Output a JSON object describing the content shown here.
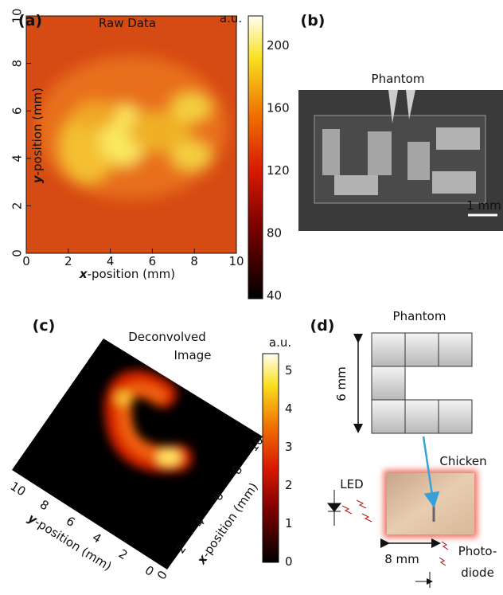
{
  "panels": {
    "a": {
      "label": "(a)",
      "title": "Raw Data",
      "unit": "a.u.",
      "x_ticks": [
        "0",
        "2",
        "4",
        "6",
        "8",
        "10"
      ],
      "y_ticks": [
        "0",
        "2",
        "4",
        "6",
        "8",
        "10"
      ],
      "x_axis": {
        "var": "x",
        "rest": "-position (mm)"
      },
      "y_axis": {
        "var": "y",
        "rest": "-position (mm)"
      },
      "colorbar_ticks": [
        "40",
        "80",
        "120",
        "160",
        "200"
      ]
    },
    "b": {
      "label": "(b)",
      "title": "Phantom",
      "scale_bar": "1 mm"
    },
    "c": {
      "label": "(c)",
      "title_lines": [
        "Deconvolved",
        "Image"
      ],
      "unit": "a.u.",
      "x_ticks": [
        "0",
        "2",
        "4",
        "6",
        "8",
        "10"
      ],
      "y_ticks": [
        "0",
        "2",
        "4",
        "6",
        "8",
        "10"
      ],
      "x_axis": {
        "var": "x",
        "rest": "-position (mm)"
      },
      "y_axis": {
        "var": "y",
        "rest": "-position (mm)"
      },
      "colorbar_ticks": [
        "0",
        "1",
        "2",
        "3",
        "4",
        "5"
      ]
    },
    "d": {
      "label": "(d)",
      "title": "Phantom",
      "height": "6 mm",
      "sample": "Chicken",
      "source": "LED",
      "width": "8 mm",
      "detector_lines": [
        "Photo-",
        "diode"
      ]
    }
  }
}
